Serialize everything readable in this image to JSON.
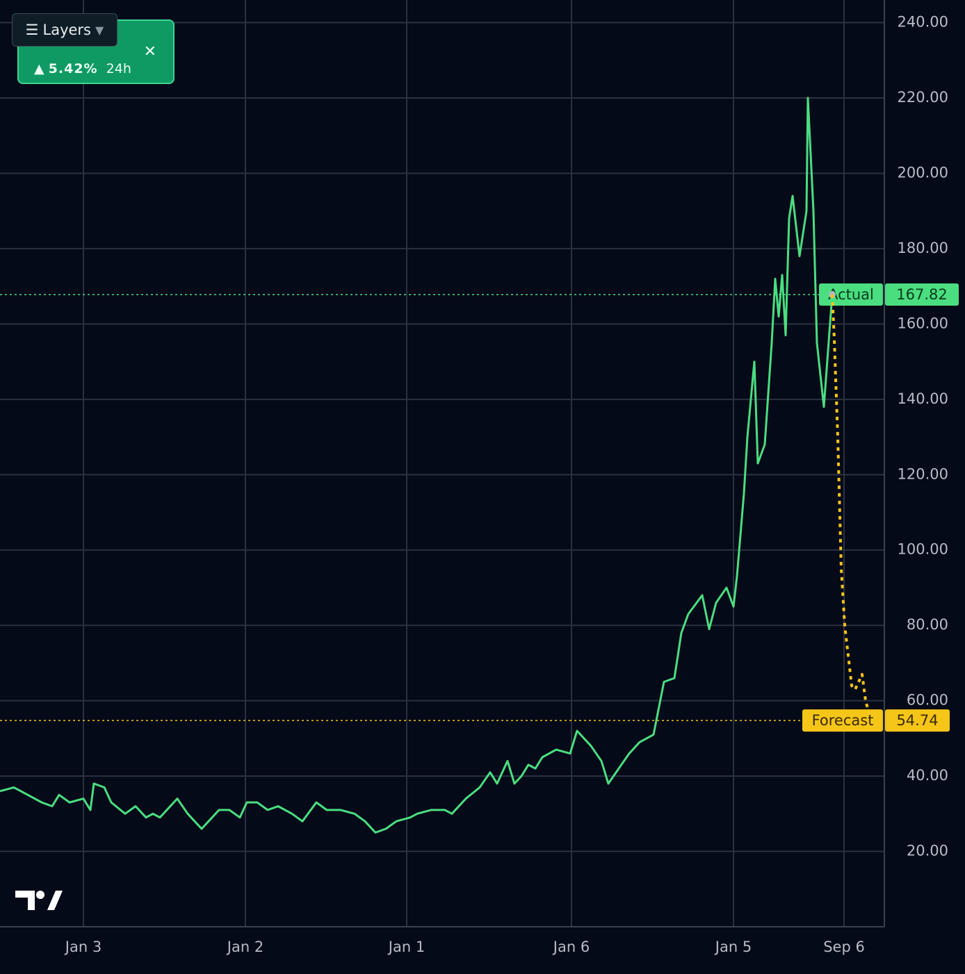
{
  "chart_data": {
    "type": "line",
    "xlim": [
      0,
      127.2
    ],
    "ylim": [
      0,
      246
    ],
    "xticks": [
      {
        "value": 12,
        "label": "Jan 3"
      },
      {
        "value": 35.3,
        "label": "Jan 2"
      },
      {
        "value": 58.5,
        "label": "Jan 1"
      },
      {
        "value": 82.2,
        "label": "Jan 6"
      },
      {
        "value": 105.5,
        "label": "Jan 5"
      },
      {
        "value": 121.4,
        "label": "Sep 6"
      }
    ],
    "yticks": [
      {
        "value": 20,
        "label": "20.00"
      },
      {
        "value": 40,
        "label": "40.00"
      },
      {
        "value": 60,
        "label": "60.00"
      },
      {
        "value": 80,
        "label": "80.00"
      },
      {
        "value": 100,
        "label": "100.00"
      },
      {
        "value": 120,
        "label": "120.00"
      },
      {
        "value": 140,
        "label": "140.00"
      },
      {
        "value": 160,
        "label": "160.00"
      },
      {
        "value": 180,
        "label": "180.00"
      },
      {
        "value": 200,
        "label": "200.00"
      },
      {
        "value": 220,
        "label": "220.00"
      },
      {
        "value": 240,
        "label": "240.00"
      }
    ],
    "grid": true,
    "series": [
      {
        "name": "Actual",
        "color": "#4ade80",
        "style": "solid",
        "x": [
          0,
          2,
          4,
          6,
          7.5,
          8.5,
          10,
          12,
          13,
          13.5,
          15,
          16,
          18,
          19.5,
          21,
          22,
          23,
          25.5,
          27,
          29,
          30,
          31.5,
          33,
          34.5,
          35.5,
          37,
          38.5,
          40,
          42,
          43.5,
          45.5,
          47,
          49,
          51,
          52.5,
          54,
          55.5,
          57,
          59,
          60,
          62,
          64,
          65,
          67,
          69,
          70.5,
          71.5,
          73,
          74,
          75,
          76,
          77,
          78,
          80,
          82,
          83,
          85,
          86.5,
          87.5,
          89,
          90.5,
          92,
          94,
          95.5,
          97,
          98,
          99,
          101,
          102,
          103,
          104.5,
          105.5,
          106,
          107,
          107.5,
          108.5,
          109,
          110,
          111,
          111.5,
          112,
          112.5,
          113,
          113.5,
          114,
          115,
          116,
          116.2,
          117,
          117.5,
          118.5,
          119.7
        ],
        "values": [
          36,
          37,
          35,
          33,
          32,
          35,
          33,
          34,
          31,
          38,
          37,
          33,
          30,
          32,
          29,
          30,
          29,
          34,
          30,
          26,
          28,
          31,
          31,
          29,
          33,
          33,
          31,
          32,
          30,
          28,
          33,
          31,
          31,
          30,
          28,
          25,
          26,
          28,
          29,
          30,
          31,
          31,
          30,
          34,
          37,
          41,
          38,
          44,
          38,
          40,
          43,
          42,
          45,
          47,
          46,
          52,
          48,
          44,
          38,
          42,
          46,
          49,
          51,
          65,
          66,
          78,
          83,
          88,
          79,
          86,
          90,
          85,
          93,
          115,
          130,
          150,
          123,
          128,
          155,
          172,
          162,
          173,
          157,
          188,
          194,
          178,
          190,
          220,
          190,
          155,
          138,
          167.82
        ]
      },
      {
        "name": "Forecast",
        "color": "#f5c518",
        "style": "dotted",
        "x": [
          119.7,
          120,
          120.5,
          121,
          121.5,
          122.5,
          123,
          124,
          124.5,
          125.3
        ],
        "values": [
          167.82,
          156,
          130,
          95,
          80,
          64,
          63,
          67,
          60,
          54.74
        ]
      }
    ]
  },
  "widget": {
    "layers": "Layers",
    "change": "5.42%",
    "period": "24h"
  }
}
